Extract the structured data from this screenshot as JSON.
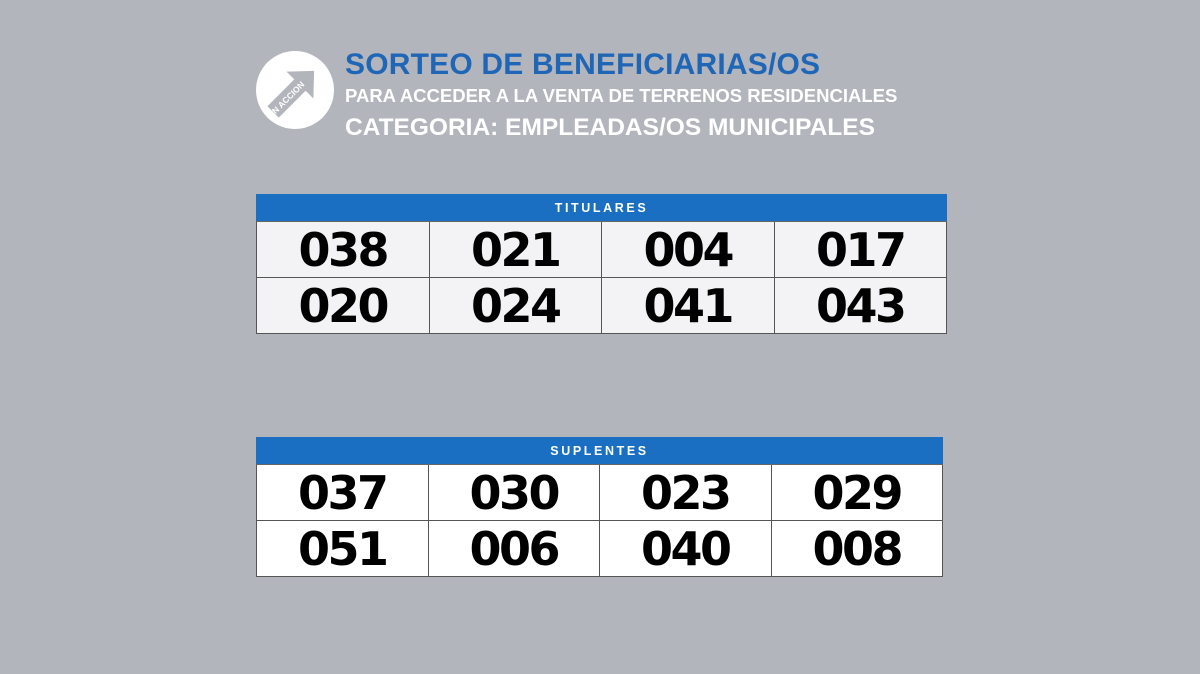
{
  "logo": {
    "text": "EN ACCION",
    "icon": "arrow-icon"
  },
  "header": {
    "title": "SORTEO DE BENEFICIARIAS/OS",
    "subtitle": "PARA ACCEDER A LA VENTA DE TERRENOS RESIDENCIALES",
    "category": "CATEGORIA: EMPLEADAS/OS MUNICIPALES"
  },
  "titulares": {
    "label": "TITULARES",
    "numbers": [
      "038",
      "021",
      "004",
      "017",
      "020",
      "024",
      "041",
      "043"
    ]
  },
  "suplentes": {
    "label": "SUPLENTES",
    "numbers": [
      "037",
      "030",
      "023",
      "029",
      "051",
      "006",
      "040",
      "008"
    ]
  },
  "colors": {
    "background": "#b3b5bc",
    "accent": "#1f66b6",
    "header_bar": "#1a6fc2"
  }
}
